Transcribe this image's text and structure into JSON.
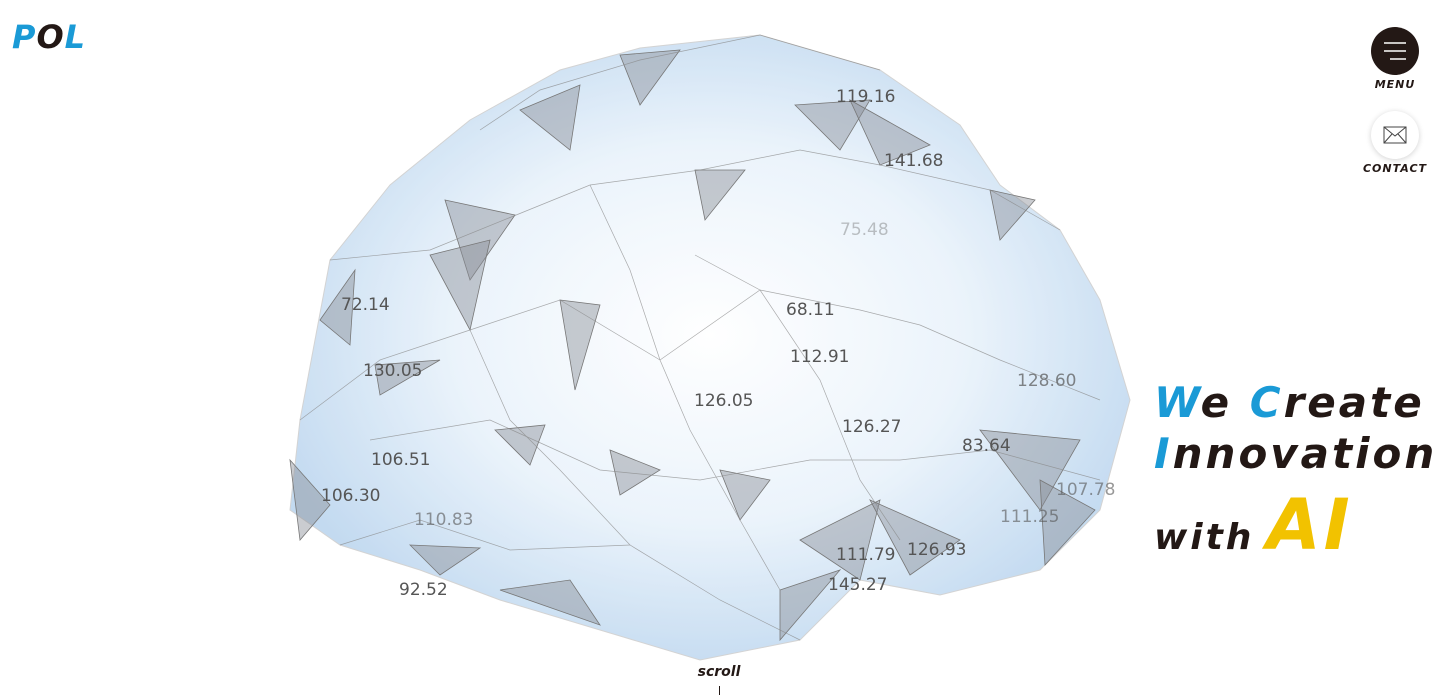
{
  "header": {
    "logo": [
      "P",
      "O",
      "L"
    ]
  },
  "nav": {
    "menu": "MENU",
    "contact": "CONTACT"
  },
  "hero": {
    "lines": [
      [
        "W",
        "e",
        "C",
        "reate"
      ],
      [
        "I",
        "nnovation"
      ],
      [
        "with",
        "AI"
      ]
    ]
  },
  "brain": {
    "labels": [
      "119.16",
      "141.68",
      "75.48",
      "72.14",
      "68.11",
      "112.91",
      "130.05",
      "128.60",
      "126.05",
      "126.27",
      "83.64",
      "106.51",
      "106.30",
      "110.83",
      "92.52",
      "111.79",
      "126.93",
      "145.27",
      "107.78",
      "111.25"
    ]
  },
  "scroll": "scroll"
}
